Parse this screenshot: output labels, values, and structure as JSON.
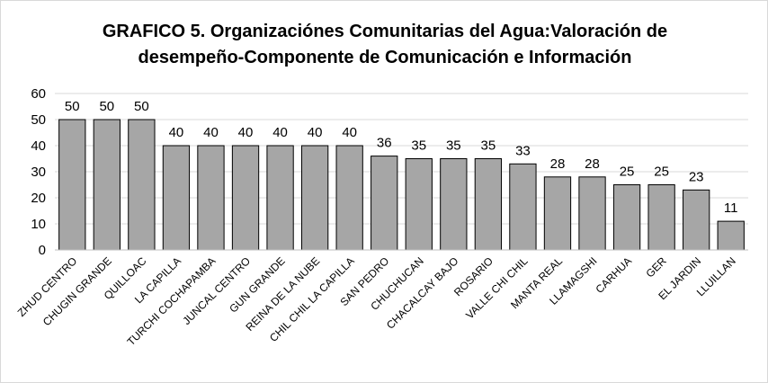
{
  "chart_data": {
    "type": "bar",
    "title_line1": "GRAFICO 5. Organizaciónes Comunitarias del Agua:Valoración de",
    "title_line2": "desempeño-Componente de Comunicación  e Información",
    "categories": [
      "ZHUD CENTRO",
      "CHUGIN GRANDE",
      "QUILLOAC",
      "LA CAPILLA",
      "TURCHI COCHAPAMBA",
      "JUNCAL CENTRO",
      "GUN GRANDE",
      "REINA DE LA NUBE",
      "CHIL CHIL LA CAPILLA",
      "SAN PEDRO",
      "CHUCHUCAN",
      "CHACALCAY BAJO",
      "ROSARIO",
      "VALLE CHI CHIL",
      "MANTA REAL",
      "LLAMAGSHI",
      "CARHUA",
      "GER",
      "EL JARDIN",
      "LLUILLAN"
    ],
    "values": [
      50,
      50,
      50,
      40,
      40,
      40,
      40,
      40,
      40,
      36,
      35,
      35,
      35,
      33,
      28,
      28,
      25,
      25,
      23,
      11
    ],
    "data_labels": [
      "50",
      "50",
      "50",
      "40",
      "40",
      "40",
      "40",
      "40",
      "40",
      "36",
      "35",
      "35",
      "35",
      "33",
      "28",
      "28",
      "25",
      "25",
      "23",
      "11"
    ],
    "ylim": [
      0,
      60
    ],
    "yticks": [
      "0",
      "10",
      "20",
      "30",
      "40",
      "50",
      "60"
    ],
    "grid": true,
    "legend": "none",
    "colors": {
      "bar_fill": "#a6a6a6",
      "bar_stroke": "#000000",
      "grid": "#d9d9d9",
      "axis": "#bfbfbf"
    }
  }
}
